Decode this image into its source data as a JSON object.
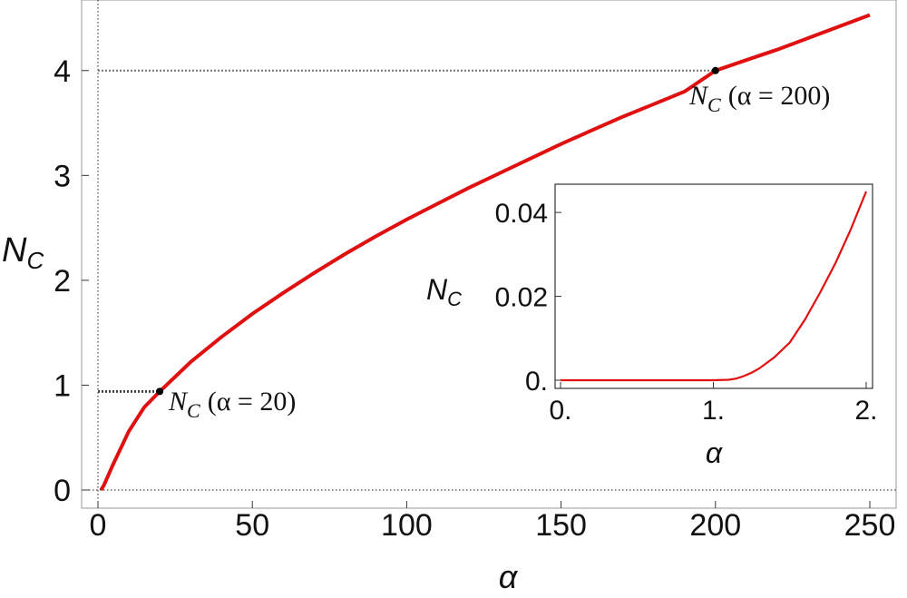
{
  "chart_data": [
    {
      "type": "line",
      "xlabel": "α",
      "ylabel_main": "N",
      "ylabel_sub": "C",
      "xlim": [
        0,
        250
      ],
      "ylim": [
        0,
        4.5
      ],
      "xticks": [
        0,
        50,
        100,
        150,
        200,
        250
      ],
      "xtick_labels": [
        "0",
        "50",
        "100",
        "150",
        "200",
        "250"
      ],
      "yticks": [
        0,
        1,
        2,
        3,
        4
      ],
      "ytick_labels": [
        "0",
        "1",
        "2",
        "3",
        "4"
      ],
      "grid": false,
      "series_color": "#e01010",
      "x": [
        1,
        2,
        5,
        10,
        15,
        20,
        30,
        40,
        50,
        60,
        70,
        80,
        90,
        100,
        110,
        120,
        130,
        140,
        150,
        160,
        170,
        180,
        190,
        200,
        210,
        220,
        230,
        240,
        250
      ],
      "y": [
        0.0,
        0.05,
        0.25,
        0.56,
        0.79,
        0.94,
        1.22,
        1.46,
        1.68,
        1.88,
        2.07,
        2.25,
        2.42,
        2.58,
        2.73,
        2.88,
        3.02,
        3.16,
        3.3,
        3.43,
        3.56,
        3.68,
        3.8,
        4.0,
        4.1,
        4.2,
        4.31,
        4.42,
        4.53
      ],
      "points": [
        {
          "x": 20,
          "y": 0.94,
          "label_main": "N",
          "label_sub": "C",
          "label_rest": "(α = 20)"
        },
        {
          "x": 200,
          "y": 4.0,
          "label_main": "N",
          "label_sub": "C",
          "label_rest": "(α = 200)"
        }
      ]
    },
    {
      "type": "line",
      "xlabel": "α",
      "ylabel_main": "N",
      "ylabel_sub": "C",
      "xlim": [
        0,
        2
      ],
      "ylim": [
        0,
        0.045
      ],
      "xticks": [
        0,
        1,
        2
      ],
      "xtick_labels": [
        "0.",
        "1.",
        "2."
      ],
      "yticks": [
        0,
        0.02,
        0.04
      ],
      "ytick_labels": [
        "0.",
        "0.02",
        "0.04"
      ],
      "series_color": "#e01010",
      "x": [
        0,
        0.2,
        0.4,
        0.6,
        0.8,
        1.0,
        1.1,
        1.15,
        1.2,
        1.25,
        1.3,
        1.4,
        1.5,
        1.6,
        1.7,
        1.8,
        1.9,
        2.0
      ],
      "y": [
        0,
        0,
        0,
        0,
        0,
        0,
        0.0001,
        0.0004,
        0.001,
        0.0018,
        0.0028,
        0.0055,
        0.009,
        0.0145,
        0.021,
        0.028,
        0.036,
        0.045
      ]
    }
  ]
}
